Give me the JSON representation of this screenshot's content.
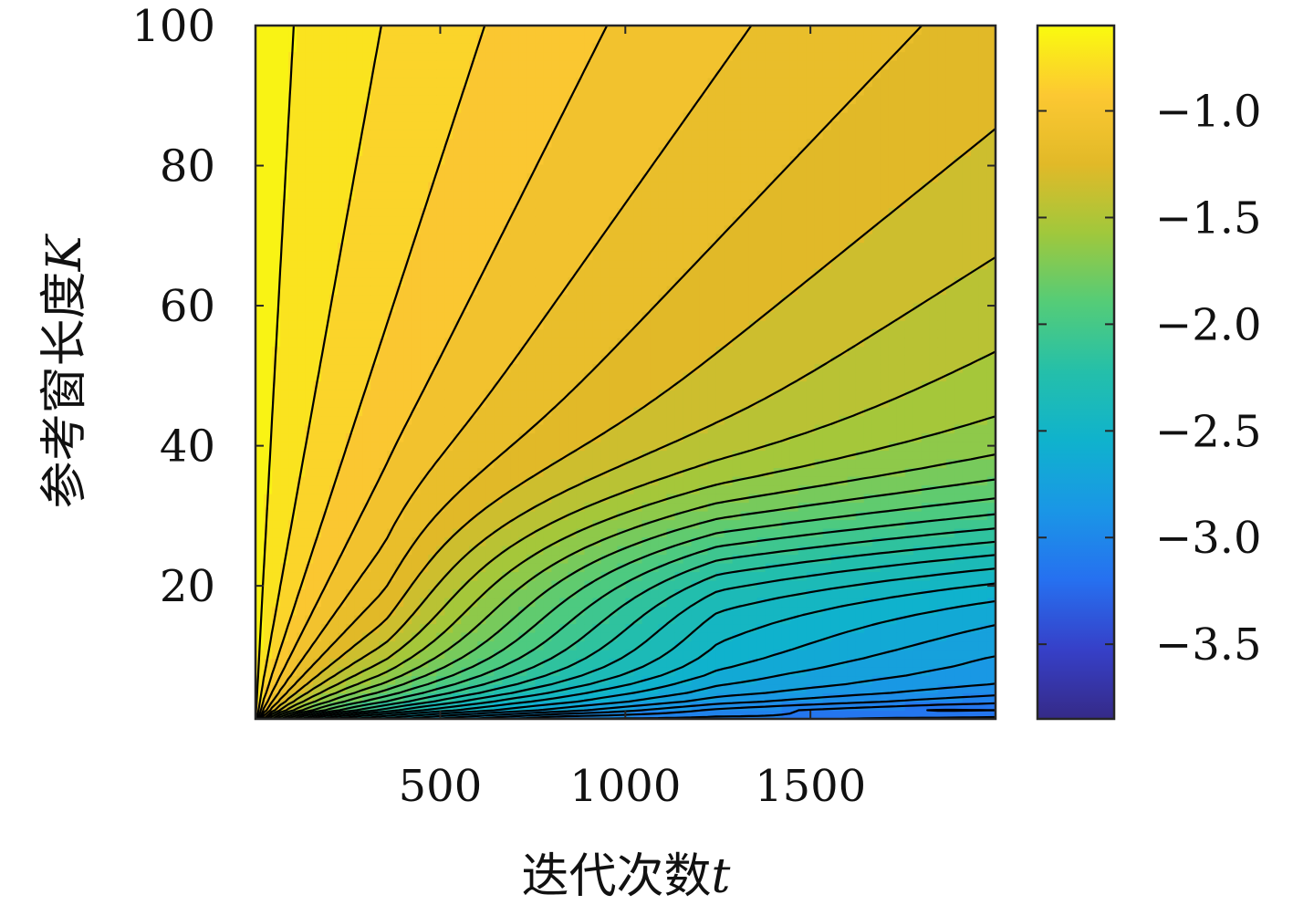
{
  "chart_data": {
    "type": "contour",
    "title": "",
    "xlabel": "迭代次数",
    "xlabel_var": "t",
    "ylabel": "参考窗长度",
    "ylabel_var": "K",
    "xlim": [
      1,
      2000
    ],
    "ylim": [
      1,
      100
    ],
    "x_ticks": [
      500,
      1000,
      1500
    ],
    "x_tick_labels": [
      "500",
      "1000",
      "1500"
    ],
    "y_ticks": [
      20,
      40,
      60,
      80,
      100
    ],
    "y_tick_labels": [
      "20",
      "40",
      "60",
      "80",
      "100"
    ],
    "colorbar": {
      "colormap": "parula",
      "range": [
        -3.85,
        -0.6
      ],
      "ticks": [
        -3.5,
        -3.0,
        -2.5,
        -2.0,
        -1.5,
        -1.0
      ],
      "tick_labels": [
        "−3.5",
        "−3.0",
        "−2.5",
        "−2.0",
        "−1.5",
        "−1.0"
      ]
    },
    "contour_levels": [
      -3.8,
      -3.7,
      -3.6,
      -3.5,
      -3.4,
      -3.3,
      -3.2,
      -3.1,
      -3.0,
      -2.9,
      -2.8,
      -2.7,
      -2.6,
      -2.5,
      -2.4,
      -2.3,
      -2.2,
      -2.1,
      -2.0,
      -1.9,
      -1.8,
      -1.7,
      -1.6,
      -1.5,
      -1.4,
      -1.3,
      -1.2,
      -1.1,
      -1.0,
      -0.9,
      -0.8,
      -0.7
    ],
    "grid": false,
    "legend": "none"
  }
}
